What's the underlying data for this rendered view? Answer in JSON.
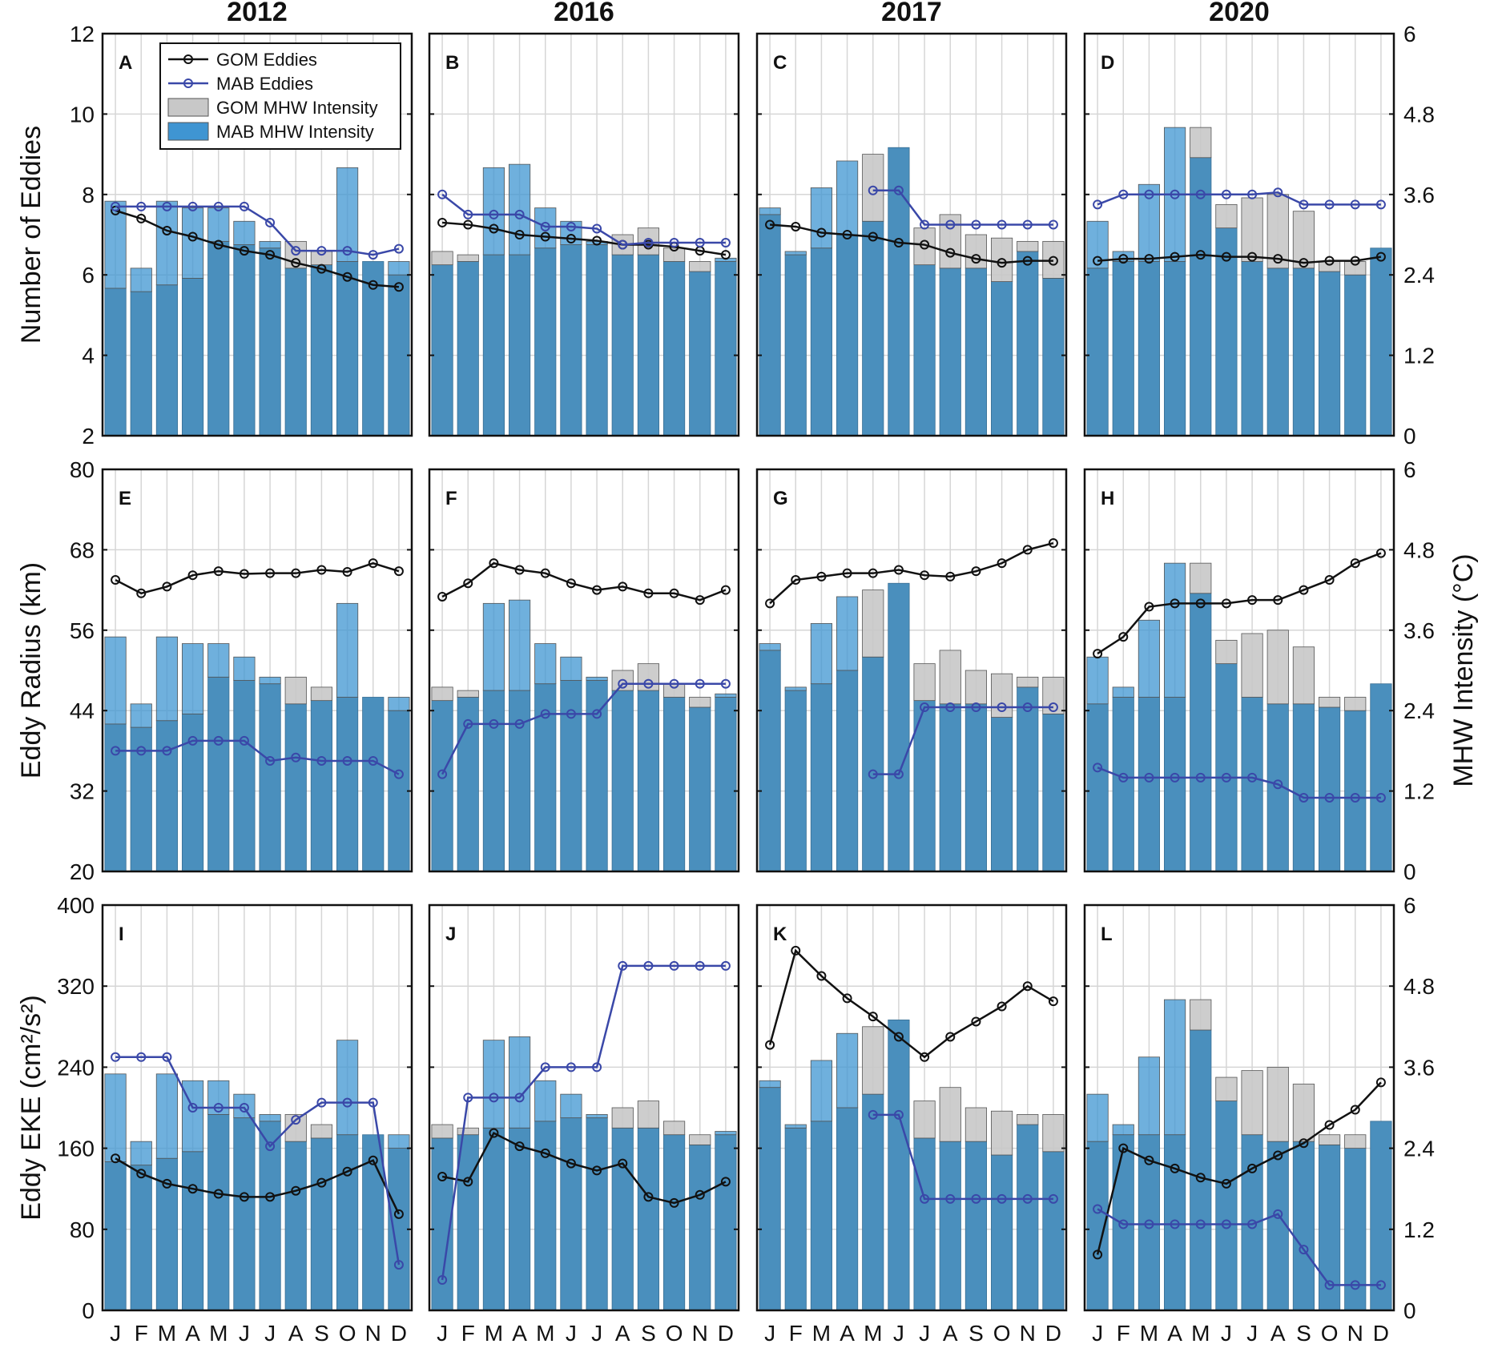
{
  "months": [
    "J",
    "F",
    "M",
    "A",
    "M",
    "J",
    "J",
    "A",
    "S",
    "O",
    "N",
    "D"
  ],
  "years": [
    "2012",
    "2016",
    "2017",
    "2020"
  ],
  "colors": {
    "gom_line": "#111111",
    "mab_line": "#3a48a8",
    "gom_bar": "#c8c8c8",
    "mab_bar": "#3f95d2",
    "overlap": "#4a8fbd"
  },
  "legend": {
    "gom_eddies": "GOM Eddies",
    "mab_eddies": "MAB Eddies",
    "gom_mhw": "GOM MHW Intensity",
    "mab_mhw": "MAB MHW Intensity"
  },
  "right_axis": {
    "label": "MHW Intensity (°C)",
    "ticks": [
      "0",
      "1.2",
      "2.4",
      "3.6",
      "4.8",
      "6"
    ],
    "ylim": [
      0,
      6
    ]
  },
  "chart_data": [
    {
      "type": "bar+line",
      "row_label": "Number of Eddies",
      "ylim": [
        2,
        12
      ],
      "yticks": [
        "2",
        "4",
        "6",
        "8",
        "10",
        "12"
      ],
      "panels": [
        {
          "label": "A",
          "year": "2012",
          "gom_eddies": [
            7.6,
            7.4,
            7.1,
            6.95,
            6.75,
            6.6,
            6.5,
            6.3,
            6.15,
            5.95,
            5.75,
            5.7
          ],
          "mab_eddies": [
            7.7,
            7.7,
            7.7,
            7.7,
            7.7,
            7.7,
            7.3,
            6.6,
            6.6,
            6.6,
            6.5,
            6.65
          ],
          "gom_mhw": [
            2.2,
            2.15,
            2.25,
            2.35,
            2.9,
            2.85,
            2.8,
            2.9,
            2.75,
            2.6,
            2.6,
            2.4
          ],
          "mab_mhw": [
            3.5,
            2.5,
            3.5,
            3.4,
            3.4,
            3.2,
            2.9,
            2.5,
            2.55,
            4.0,
            2.6,
            2.6
          ]
        },
        {
          "label": "B",
          "year": "2016",
          "gom_eddies": [
            7.3,
            7.25,
            7.15,
            7.0,
            6.95,
            6.9,
            6.85,
            6.75,
            6.75,
            6.7,
            6.6,
            6.5
          ],
          "mab_eddies": [
            8.0,
            7.5,
            7.5,
            7.5,
            7.2,
            7.2,
            7.15,
            6.75,
            6.8,
            6.8,
            6.8,
            6.8
          ],
          "gom_mhw": [
            2.75,
            2.7,
            2.7,
            2.7,
            2.8,
            2.85,
            2.85,
            3.0,
            3.1,
            2.8,
            2.6,
            2.6
          ],
          "mab_mhw": [
            2.55,
            2.6,
            4.0,
            4.05,
            3.4,
            3.2,
            2.9,
            2.7,
            2.7,
            2.6,
            2.45,
            2.65
          ]
        },
        {
          "label": "C",
          "year": "2017",
          "gom_eddies": [
            7.25,
            7.2,
            7.05,
            7.0,
            6.95,
            6.8,
            6.75,
            6.55,
            6.4,
            6.3,
            6.35,
            6.35
          ],
          "mab_eddies": [
            null,
            null,
            null,
            null,
            8.1,
            8.1,
            7.25,
            7.25,
            7.25,
            7.25,
            7.25,
            7.25
          ],
          "gom_mhw": [
            3.3,
            2.7,
            2.8,
            3.0,
            4.2,
            4.3,
            3.1,
            3.3,
            3.0,
            2.95,
            2.9,
            2.9
          ],
          "mab_mhw": [
            3.4,
            2.75,
            3.7,
            4.1,
            3.2,
            4.3,
            2.55,
            2.5,
            2.5,
            2.3,
            2.75,
            2.35
          ]
        },
        {
          "label": "D",
          "year": "2020",
          "gom_eddies": [
            6.35,
            6.4,
            6.4,
            6.45,
            6.5,
            6.45,
            6.45,
            6.4,
            6.3,
            6.35,
            6.35,
            6.45
          ],
          "mab_eddies": [
            7.75,
            8.0,
            8.0,
            8.0,
            8.0,
            8.0,
            8.0,
            8.05,
            7.75,
            7.75,
            7.75,
            7.75
          ],
          "gom_mhw": [
            2.5,
            2.6,
            2.6,
            2.6,
            4.6,
            3.45,
            3.55,
            3.6,
            3.35,
            2.6,
            2.6,
            2.8
          ],
          "mab_mhw": [
            3.2,
            2.75,
            3.75,
            4.6,
            4.15,
            3.1,
            2.6,
            2.5,
            2.5,
            2.45,
            2.4,
            2.8
          ]
        }
      ]
    },
    {
      "type": "bar+line",
      "row_label": "Eddy Radius (km)",
      "ylim": [
        20,
        80
      ],
      "yticks": [
        "20",
        "32",
        "44",
        "56",
        "68",
        "80"
      ],
      "panels": [
        {
          "label": "E",
          "year": "2012",
          "gom_eddies": [
            63.5,
            61.5,
            62.5,
            64.2,
            64.8,
            64.4,
            64.5,
            64.5,
            65.0,
            64.7,
            66.0,
            64.8
          ],
          "mab_eddies": [
            38.0,
            38.0,
            38.0,
            39.5,
            39.5,
            39.5,
            36.5,
            37.0,
            36.5,
            36.5,
            36.5,
            34.5
          ],
          "gom_mhw": [
            2.2,
            2.15,
            2.25,
            2.35,
            2.9,
            2.85,
            2.8,
            2.9,
            2.75,
            2.6,
            2.6,
            2.4
          ],
          "mab_mhw": [
            3.5,
            2.5,
            3.5,
            3.4,
            3.4,
            3.2,
            2.9,
            2.5,
            2.55,
            4.0,
            2.6,
            2.6
          ]
        },
        {
          "label": "F",
          "year": "2016",
          "gom_eddies": [
            61.0,
            63.0,
            66.0,
            65.0,
            64.5,
            63.0,
            62.0,
            62.5,
            61.5,
            61.5,
            60.5,
            62.0
          ],
          "mab_eddies": [
            34.5,
            42.0,
            42.0,
            42.0,
            43.5,
            43.5,
            43.5,
            48.0,
            48.0,
            48.0,
            48.0,
            48.0
          ],
          "gom_mhw": [
            2.75,
            2.7,
            2.7,
            2.7,
            2.8,
            2.85,
            2.85,
            3.0,
            3.1,
            2.8,
            2.6,
            2.6
          ],
          "mab_mhw": [
            2.55,
            2.6,
            4.0,
            4.05,
            3.4,
            3.2,
            2.9,
            2.7,
            2.7,
            2.6,
            2.45,
            2.65
          ]
        },
        {
          "label": "G",
          "year": "2017",
          "gom_eddies": [
            60.0,
            63.5,
            64.0,
            64.5,
            64.5,
            65.0,
            64.2,
            64.0,
            64.8,
            66.0,
            68.0,
            69.0
          ],
          "mab_eddies": [
            null,
            null,
            null,
            null,
            34.5,
            34.5,
            44.5,
            44.5,
            44.5,
            44.5,
            44.5,
            44.5
          ],
          "gom_mhw": [
            3.3,
            2.7,
            2.8,
            3.0,
            4.2,
            4.3,
            3.1,
            3.3,
            3.0,
            2.95,
            2.9,
            2.9
          ],
          "mab_mhw": [
            3.4,
            2.75,
            3.7,
            4.1,
            3.2,
            4.3,
            2.55,
            2.5,
            2.5,
            2.3,
            2.75,
            2.35
          ]
        },
        {
          "label": "H",
          "year": "2020",
          "gom_eddies": [
            52.5,
            55.0,
            59.5,
            60.0,
            60.0,
            60.0,
            60.5,
            60.5,
            62.0,
            63.5,
            66.0,
            67.5
          ],
          "mab_eddies": [
            35.5,
            34.0,
            34.0,
            34.0,
            34.0,
            34.0,
            34.0,
            33.0,
            31.0,
            31.0,
            31.0,
            31.0
          ],
          "gom_mhw": [
            2.5,
            2.6,
            2.6,
            2.6,
            4.6,
            3.45,
            3.55,
            3.6,
            3.35,
            2.6,
            2.6,
            2.8
          ],
          "mab_mhw": [
            3.2,
            2.75,
            3.75,
            4.6,
            4.15,
            3.1,
            2.6,
            2.5,
            2.5,
            2.45,
            2.4,
            2.8
          ]
        }
      ]
    },
    {
      "type": "bar+line",
      "row_label": "Eddy EKE (cm²/s²)",
      "ylim": [
        0,
        400
      ],
      "yticks": [
        "0",
        "80",
        "160",
        "240",
        "320",
        "400"
      ],
      "panels": [
        {
          "label": "I",
          "year": "2012",
          "gom_eddies": [
            150,
            135,
            125,
            120,
            115,
            112,
            112,
            118,
            126,
            137,
            148,
            95
          ],
          "mab_eddies": [
            250,
            250,
            250,
            200,
            200,
            200,
            162,
            188,
            205,
            205,
            205,
            45
          ],
          "gom_mhw": [
            2.2,
            2.15,
            2.25,
            2.35,
            2.9,
            2.85,
            2.8,
            2.9,
            2.75,
            2.6,
            2.6,
            2.4
          ],
          "mab_mhw": [
            3.5,
            2.5,
            3.5,
            3.4,
            3.4,
            3.2,
            2.9,
            2.5,
            2.55,
            4.0,
            2.6,
            2.6
          ]
        },
        {
          "label": "J",
          "year": "2016",
          "gom_eddies": [
            132,
            127,
            175,
            162,
            155,
            145,
            138,
            145,
            112,
            106,
            114,
            127
          ],
          "mab_eddies": [
            30,
            210,
            210,
            210,
            240,
            240,
            240,
            340,
            340,
            340,
            340,
            340
          ],
          "gom_mhw": [
            2.75,
            2.7,
            2.7,
            2.7,
            2.8,
            2.85,
            2.85,
            3.0,
            3.1,
            2.8,
            2.6,
            2.6
          ],
          "mab_mhw": [
            2.55,
            2.6,
            4.0,
            4.05,
            3.4,
            3.2,
            2.9,
            2.7,
            2.7,
            2.6,
            2.45,
            2.65
          ]
        },
        {
          "label": "K",
          "year": "2017",
          "gom_eddies": [
            262,
            355,
            330,
            308,
            290,
            270,
            250,
            270,
            285,
            300,
            320,
            305
          ],
          "mab_eddies": [
            null,
            null,
            null,
            null,
            193,
            193,
            110,
            110,
            110,
            110,
            110,
            110
          ],
          "gom_mhw": [
            3.3,
            2.7,
            2.8,
            3.0,
            4.2,
            4.3,
            3.1,
            3.3,
            3.0,
            2.95,
            2.9,
            2.9
          ],
          "mab_mhw": [
            3.4,
            2.75,
            3.7,
            4.1,
            3.2,
            4.3,
            2.55,
            2.5,
            2.5,
            2.3,
            2.75,
            2.35
          ]
        },
        {
          "label": "L",
          "year": "2020",
          "gom_eddies": [
            55,
            160,
            148,
            140,
            131,
            125,
            140,
            153,
            165,
            183,
            198,
            225
          ],
          "mab_eddies": [
            100,
            85,
            85,
            85,
            85,
            85,
            85,
            95,
            60,
            25,
            25,
            25
          ],
          "gom_mhw": [
            2.5,
            2.6,
            2.6,
            2.6,
            4.6,
            3.45,
            3.55,
            3.6,
            3.35,
            2.6,
            2.6,
            2.8
          ],
          "mab_mhw": [
            3.2,
            2.75,
            3.75,
            4.6,
            4.15,
            3.1,
            2.6,
            2.5,
            2.5,
            2.45,
            2.4,
            2.8
          ]
        }
      ]
    }
  ]
}
